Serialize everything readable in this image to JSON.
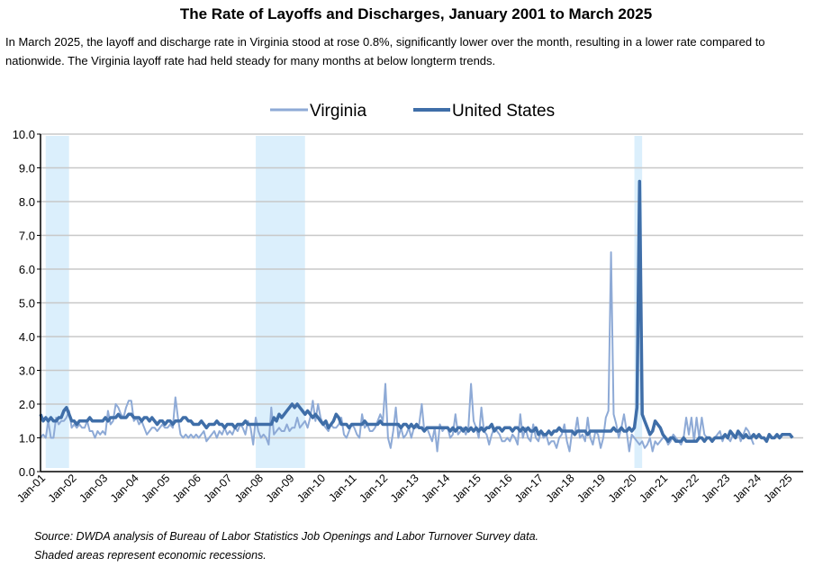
{
  "chart_data": {
    "type": "line",
    "title": "The Rate of Layoffs and Discharges, January 2001 to March 2025",
    "subtitle": "In March 2025, the layoff and discharge rate in Virginia stood at rose 0.8%, significantly lower over the month, resulting in a lower rate compared to nationwide. The Virginia layoff rate had held steady for many months at below longterm trends.",
    "source": "Source: DWDA analysis of Bureau of Labor Statistics Job Openings and Labor Turnover Survey data.",
    "note": "Shaded areas represent economic recessions.",
    "x_start": "2001-01",
    "x_end": "2025-03",
    "frequency": "monthly",
    "ylim": [
      0,
      10
    ],
    "yticks": [
      "0.0",
      "1.0",
      "2.0",
      "3.0",
      "4.0",
      "5.0",
      "6.0",
      "7.0",
      "8.0",
      "9.0",
      "10.0"
    ],
    "xticks": [
      "Jan-01",
      "Jan-02",
      "Jan-03",
      "Jan-04",
      "Jan-05",
      "Jan-06",
      "Jan-07",
      "Jan-08",
      "Jan-09",
      "Jan-10",
      "Jan-11",
      "Jan-12",
      "Jan-13",
      "Jan-14",
      "Jan-15",
      "Jan-16",
      "Jan-17",
      "Jan-18",
      "Jan-19",
      "Jan-20",
      "Jan-21",
      "Jan-22",
      "Jan-23",
      "Jan-24",
      "Jan-25"
    ],
    "grid": true,
    "legend_position": "top-center",
    "recessions": [
      [
        "2001-03",
        "2001-11"
      ],
      [
        "2007-12",
        "2009-06"
      ],
      [
        "2020-02",
        "2020-04"
      ]
    ],
    "colors": {
      "Virginia": "#8eaad6",
      "United States": "#3f6ea8",
      "recession": "#dbeffc",
      "grid": "#c8c8c8"
    },
    "series": [
      {
        "name": "Virginia",
        "values": [
          1.0,
          1.1,
          1.0,
          1.5,
          1.0,
          1.0,
          1.6,
          1.4,
          1.5,
          1.5,
          1.6,
          1.8,
          1.3,
          1.4,
          1.3,
          1.4,
          1.3,
          1.3,
          1.5,
          1.2,
          1.2,
          1.0,
          1.2,
          1.1,
          1.2,
          1.1,
          1.8,
          1.4,
          1.5,
          2.0,
          1.9,
          1.7,
          1.6,
          1.9,
          2.1,
          2.1,
          1.5,
          1.6,
          1.4,
          1.5,
          1.3,
          1.1,
          1.2,
          1.3,
          1.3,
          1.2,
          1.3,
          1.4,
          1.3,
          1.3,
          1.4,
          1.3,
          2.2,
          1.6,
          1.1,
          1.0,
          1.1,
          1.0,
          1.1,
          1.0,
          1.1,
          1.0,
          1.1,
          1.2,
          0.9,
          1.0,
          1.1,
          1.2,
          1.0,
          1.2,
          1.1,
          1.3,
          1.1,
          1.2,
          1.1,
          1.3,
          1.2,
          1.4,
          1.3,
          1.1,
          1.5,
          1.3,
          0.8,
          1.6,
          1.2,
          1.0,
          1.1,
          1.0,
          0.8,
          1.9,
          1.1,
          1.2,
          1.3,
          1.2,
          1.2,
          1.4,
          1.2,
          1.3,
          1.3,
          1.6,
          1.3,
          1.4,
          1.5,
          1.3,
          1.6,
          2.1,
          1.5,
          2.0,
          1.6,
          1.4,
          1.3,
          1.2,
          1.4,
          1.3,
          1.3,
          1.4,
          1.6,
          1.1,
          1.0,
          1.2,
          1.4,
          1.3,
          1.1,
          1.0,
          1.7,
          1.3,
          1.4,
          1.2,
          1.2,
          1.3,
          1.5,
          1.7,
          1.5,
          2.6,
          1.0,
          0.7,
          1.2,
          1.9,
          1.0,
          1.3,
          1.0,
          1.1,
          1.3,
          1.0,
          1.3,
          1.3,
          1.4,
          2.0,
          1.2,
          1.3,
          1.1,
          0.9,
          1.3,
          0.6,
          1.4,
          1.2,
          1.3,
          1.3,
          1.0,
          1.1,
          1.7,
          1.1,
          1.2,
          1.3,
          1.1,
          1.3,
          2.6,
          1.5,
          1.3,
          1.0,
          1.9,
          1.2,
          1.1,
          0.8,
          1.1,
          1.3,
          1.2,
          1.1,
          0.9,
          0.9,
          1.0,
          0.9,
          1.1,
          1.0,
          0.8,
          1.7,
          1.0,
          1.3,
          1.0,
          0.9,
          1.4,
          1.0,
          0.9,
          1.2,
          1.0,
          1.1,
          0.8,
          0.9,
          0.9,
          0.7,
          1.0,
          1.1,
          1.4,
          0.9,
          0.6,
          1.2,
          1.1,
          1.6,
          1.0,
          1.1,
          0.9,
          1.6,
          1.0,
          0.8,
          1.2,
          1.1,
          0.7,
          1.0,
          1.6,
          1.8,
          6.5,
          1.7,
          1.4,
          1.0,
          1.3,
          1.7,
          1.2,
          0.6,
          1.1,
          1.0,
          0.9,
          0.8,
          0.9,
          0.7,
          0.8,
          1.0,
          0.6,
          0.9,
          0.8,
          0.9,
          1.0,
          1.0,
          0.8,
          0.9,
          1.1,
          1.0,
          0.9,
          0.8,
          1.0,
          1.6,
          1.1,
          1.6,
          0.9,
          1.6,
          1.0,
          1.6,
          1.1,
          1.0,
          1.0,
          0.9,
          1.0,
          1.1,
          1.2,
          0.9,
          1.1,
          1.0,
          0.9,
          1.1,
          1.0,
          1.2,
          0.9,
          1.1,
          1.3,
          1.2,
          1.0,
          0.8
        ]
      },
      {
        "name": "United States",
        "values": [
          1.7,
          1.5,
          1.6,
          1.5,
          1.6,
          1.5,
          1.5,
          1.6,
          1.6,
          1.8,
          1.9,
          1.7,
          1.5,
          1.5,
          1.4,
          1.5,
          1.5,
          1.5,
          1.5,
          1.6,
          1.5,
          1.5,
          1.5,
          1.5,
          1.5,
          1.6,
          1.5,
          1.6,
          1.6,
          1.6,
          1.7,
          1.6,
          1.6,
          1.6,
          1.7,
          1.7,
          1.6,
          1.6,
          1.6,
          1.5,
          1.6,
          1.6,
          1.5,
          1.6,
          1.5,
          1.4,
          1.5,
          1.5,
          1.4,
          1.5,
          1.5,
          1.4,
          1.5,
          1.5,
          1.5,
          1.6,
          1.6,
          1.5,
          1.5,
          1.4,
          1.4,
          1.4,
          1.5,
          1.4,
          1.3,
          1.4,
          1.4,
          1.4,
          1.5,
          1.4,
          1.4,
          1.3,
          1.4,
          1.4,
          1.4,
          1.3,
          1.4,
          1.4,
          1.4,
          1.5,
          1.4,
          1.4,
          1.4,
          1.4,
          1.4,
          1.4,
          1.4,
          1.4,
          1.4,
          1.4,
          1.6,
          1.5,
          1.7,
          1.6,
          1.7,
          1.8,
          1.9,
          2.0,
          1.9,
          2.0,
          1.9,
          1.8,
          1.7,
          1.8,
          1.7,
          1.6,
          1.7,
          1.6,
          1.5,
          1.4,
          1.5,
          1.3,
          1.4,
          1.5,
          1.7,
          1.6,
          1.4,
          1.4,
          1.4,
          1.3,
          1.4,
          1.4,
          1.4,
          1.4,
          1.4,
          1.5,
          1.4,
          1.4,
          1.4,
          1.4,
          1.4,
          1.5,
          1.4,
          1.4,
          1.4,
          1.4,
          1.4,
          1.4,
          1.4,
          1.3,
          1.4,
          1.4,
          1.3,
          1.4,
          1.3,
          1.4,
          1.3,
          1.3,
          1.2,
          1.3,
          1.3,
          1.3,
          1.3,
          1.3,
          1.3,
          1.3,
          1.3,
          1.3,
          1.2,
          1.3,
          1.2,
          1.3,
          1.3,
          1.2,
          1.3,
          1.2,
          1.3,
          1.2,
          1.3,
          1.2,
          1.3,
          1.2,
          1.3,
          1.3,
          1.4,
          1.2,
          1.3,
          1.3,
          1.2,
          1.3,
          1.3,
          1.3,
          1.2,
          1.3,
          1.3,
          1.2,
          1.3,
          1.2,
          1.3,
          1.2,
          1.2,
          1.3,
          1.1,
          1.2,
          1.1,
          1.1,
          1.2,
          1.1,
          1.2,
          1.2,
          1.3,
          1.2,
          1.2,
          1.2,
          1.2,
          1.2,
          1.1,
          1.2,
          1.2,
          1.2,
          1.2,
          1.1,
          1.2,
          1.2,
          1.2,
          1.2,
          1.2,
          1.2,
          1.2,
          1.2,
          1.2,
          1.3,
          1.2,
          1.2,
          1.3,
          1.2,
          1.2,
          1.3,
          1.2,
          1.3,
          1.9,
          8.6,
          1.7,
          1.5,
          1.3,
          1.1,
          1.2,
          1.5,
          1.4,
          1.3,
          1.1,
          1.0,
          0.9,
          1.0,
          1.0,
          0.9,
          0.9,
          0.9,
          1.0,
          0.9,
          0.9,
          0.9,
          0.9,
          0.9,
          1.0,
          1.0,
          0.9,
          1.0,
          1.0,
          0.9,
          1.0,
          1.0,
          1.0,
          1.0,
          1.1,
          1.0,
          1.2,
          1.1,
          1.0,
          1.2,
          1.1,
          1.0,
          1.1,
          1.0,
          1.0,
          1.1,
          1.0,
          1.1,
          1.0,
          1.0,
          0.9,
          1.1,
          1.0,
          1.0,
          1.1,
          1.0,
          1.1,
          1.1,
          1.1,
          1.1,
          1.0
        ]
      }
    ]
  }
}
